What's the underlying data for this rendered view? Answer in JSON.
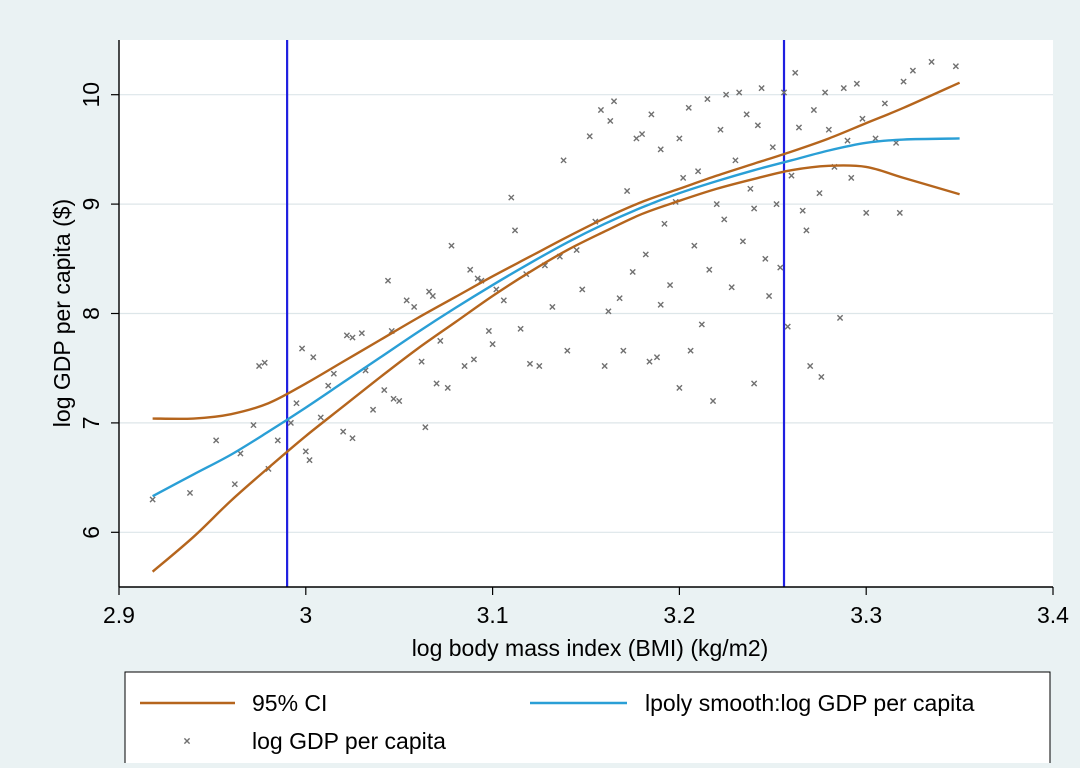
{
  "chart_data": {
    "type": "scatter",
    "xlabel": "log body mass index (BMI) (kg/m2)",
    "ylabel": "log GDP per capita ($)",
    "xlim": [
      2.9,
      3.4
    ],
    "ylim": [
      5.5,
      10.5
    ],
    "x_ticks": [
      "2.9",
      "3",
      "3.1",
      "3.2",
      "3.3",
      "3.4"
    ],
    "y_ticks": [
      "6",
      "7",
      "8",
      "9",
      "10"
    ],
    "grid": true,
    "legend_position": "bottom",
    "reference_lines_x": [
      2.99,
      3.256
    ],
    "colors": {
      "ci": "#b5651d",
      "smooth": "#2a9fd6",
      "scatter": "#707070",
      "reference": "#1f1fe0",
      "grid": "#dde6e9"
    },
    "series": [
      {
        "name": "95% CI",
        "kind": "line",
        "x": [
          2.918,
          2.94,
          2.96,
          2.98,
          3.0,
          3.02,
          3.04,
          3.06,
          3.08,
          3.1,
          3.12,
          3.14,
          3.16,
          3.18,
          3.2,
          3.22,
          3.24,
          3.26,
          3.28,
          3.3,
          3.32,
          3.35
        ],
        "y": [
          7.04,
          7.04,
          7.08,
          7.18,
          7.36,
          7.56,
          7.76,
          7.96,
          8.15,
          8.34,
          8.52,
          8.7,
          8.87,
          9.02,
          9.14,
          9.26,
          9.37,
          9.48,
          9.6,
          9.74,
          9.88,
          10.11
        ]
      },
      {
        "name": "95% CI lower",
        "kind": "line",
        "x": [
          2.918,
          2.94,
          2.96,
          2.98,
          3.0,
          3.02,
          3.04,
          3.06,
          3.08,
          3.1,
          3.12,
          3.14,
          3.16,
          3.18,
          3.2,
          3.22,
          3.24,
          3.26,
          3.28,
          3.3,
          3.32,
          3.35
        ],
        "y": [
          5.64,
          5.96,
          6.29,
          6.59,
          6.88,
          7.15,
          7.42,
          7.68,
          7.92,
          8.16,
          8.38,
          8.58,
          8.75,
          8.91,
          9.03,
          9.14,
          9.23,
          9.31,
          9.35,
          9.34,
          9.24,
          9.09
        ]
      },
      {
        "name": "lpoly smooth:log GDP per capita",
        "kind": "line",
        "x": [
          2.918,
          2.94,
          2.96,
          2.98,
          3.0,
          3.02,
          3.04,
          3.06,
          3.08,
          3.1,
          3.12,
          3.14,
          3.16,
          3.18,
          3.2,
          3.22,
          3.24,
          3.26,
          3.28,
          3.3,
          3.32,
          3.35
        ],
        "y": [
          6.33,
          6.53,
          6.71,
          6.92,
          7.14,
          7.37,
          7.6,
          7.83,
          8.05,
          8.26,
          8.46,
          8.65,
          8.82,
          8.97,
          9.1,
          9.21,
          9.31,
          9.4,
          9.49,
          9.56,
          9.59,
          9.6
        ]
      },
      {
        "name": "log GDP per capita",
        "kind": "scatter",
        "points": [
          [
            2.918,
            6.3
          ],
          [
            2.938,
            6.36
          ],
          [
            2.952,
            6.84
          ],
          [
            2.962,
            6.44
          ],
          [
            2.965,
            6.72
          ],
          [
            2.972,
            6.98
          ],
          [
            2.975,
            7.52
          ],
          [
            2.978,
            7.55
          ],
          [
            2.98,
            6.58
          ],
          [
            2.985,
            6.84
          ],
          [
            2.992,
            7.0
          ],
          [
            2.995,
            7.18
          ],
          [
            2.998,
            7.68
          ],
          [
            3.0,
            6.74
          ],
          [
            3.002,
            6.66
          ],
          [
            3.004,
            7.6
          ],
          [
            3.008,
            7.05
          ],
          [
            3.012,
            7.34
          ],
          [
            3.015,
            7.45
          ],
          [
            3.02,
            6.92
          ],
          [
            3.022,
            7.8
          ],
          [
            3.025,
            6.86
          ],
          [
            3.025,
            7.78
          ],
          [
            3.03,
            7.82
          ],
          [
            3.032,
            7.48
          ],
          [
            3.036,
            7.12
          ],
          [
            3.042,
            7.3
          ],
          [
            3.044,
            8.3
          ],
          [
            3.046,
            7.84
          ],
          [
            3.047,
            7.22
          ],
          [
            3.05,
            7.2
          ],
          [
            3.054,
            8.12
          ],
          [
            3.058,
            8.06
          ],
          [
            3.062,
            7.56
          ],
          [
            3.064,
            6.96
          ],
          [
            3.066,
            8.2
          ],
          [
            3.068,
            8.16
          ],
          [
            3.07,
            7.36
          ],
          [
            3.072,
            7.75
          ],
          [
            3.076,
            7.32
          ],
          [
            3.078,
            8.62
          ],
          [
            3.085,
            7.52
          ],
          [
            3.088,
            8.4
          ],
          [
            3.09,
            7.58
          ],
          [
            3.092,
            8.32
          ],
          [
            3.094,
            8.3
          ],
          [
            3.098,
            7.84
          ],
          [
            3.1,
            7.72
          ],
          [
            3.102,
            8.22
          ],
          [
            3.106,
            8.12
          ],
          [
            3.11,
            9.06
          ],
          [
            3.112,
            8.76
          ],
          [
            3.115,
            7.86
          ],
          [
            3.118,
            8.36
          ],
          [
            3.12,
            7.54
          ],
          [
            3.125,
            7.52
          ],
          [
            3.128,
            8.44
          ],
          [
            3.132,
            8.06
          ],
          [
            3.136,
            8.52
          ],
          [
            3.138,
            9.4
          ],
          [
            3.14,
            7.66
          ],
          [
            3.145,
            8.58
          ],
          [
            3.148,
            8.22
          ],
          [
            3.152,
            9.62
          ],
          [
            3.155,
            8.84
          ],
          [
            3.158,
            9.86
          ],
          [
            3.16,
            7.52
          ],
          [
            3.162,
            8.02
          ],
          [
            3.163,
            9.76
          ],
          [
            3.165,
            9.94
          ],
          [
            3.168,
            8.14
          ],
          [
            3.17,
            7.66
          ],
          [
            3.172,
            9.12
          ],
          [
            3.175,
            8.38
          ],
          [
            3.177,
            9.6
          ],
          [
            3.18,
            9.64
          ],
          [
            3.182,
            8.54
          ],
          [
            3.184,
            7.56
          ],
          [
            3.185,
            9.82
          ],
          [
            3.188,
            7.6
          ],
          [
            3.19,
            8.08
          ],
          [
            3.19,
            9.5
          ],
          [
            3.192,
            8.82
          ],
          [
            3.195,
            8.26
          ],
          [
            3.198,
            9.02
          ],
          [
            3.2,
            7.32
          ],
          [
            3.2,
            9.6
          ],
          [
            3.202,
            9.24
          ],
          [
            3.205,
            9.88
          ],
          [
            3.206,
            7.66
          ],
          [
            3.208,
            8.62
          ],
          [
            3.21,
            9.3
          ],
          [
            3.212,
            7.9
          ],
          [
            3.215,
            9.96
          ],
          [
            3.216,
            8.4
          ],
          [
            3.218,
            7.2
          ],
          [
            3.22,
            9.0
          ],
          [
            3.222,
            9.68
          ],
          [
            3.224,
            8.86
          ],
          [
            3.225,
            10.0
          ],
          [
            3.228,
            8.24
          ],
          [
            3.23,
            9.4
          ],
          [
            3.232,
            10.02
          ],
          [
            3.234,
            8.66
          ],
          [
            3.236,
            9.82
          ],
          [
            3.238,
            9.14
          ],
          [
            3.24,
            8.96
          ],
          [
            3.24,
            7.36
          ],
          [
            3.242,
            9.72
          ],
          [
            3.244,
            10.06
          ],
          [
            3.246,
            8.5
          ],
          [
            3.248,
            8.16
          ],
          [
            3.25,
            9.52
          ],
          [
            3.252,
            9.0
          ],
          [
            3.254,
            8.42
          ],
          [
            3.256,
            10.02
          ],
          [
            3.258,
            7.88
          ],
          [
            3.26,
            9.26
          ],
          [
            3.262,
            10.2
          ],
          [
            3.264,
            9.7
          ],
          [
            3.266,
            8.94
          ],
          [
            3.268,
            8.76
          ],
          [
            3.27,
            7.52
          ],
          [
            3.272,
            9.86
          ],
          [
            3.275,
            9.1
          ],
          [
            3.276,
            7.42
          ],
          [
            3.278,
            10.02
          ],
          [
            3.28,
            9.68
          ],
          [
            3.283,
            9.34
          ],
          [
            3.286,
            7.96
          ],
          [
            3.288,
            10.06
          ],
          [
            3.29,
            9.58
          ],
          [
            3.292,
            9.24
          ],
          [
            3.295,
            10.1
          ],
          [
            3.298,
            9.78
          ],
          [
            3.3,
            8.92
          ],
          [
            3.305,
            9.6
          ],
          [
            3.31,
            9.92
          ],
          [
            3.316,
            9.56
          ],
          [
            3.318,
            8.92
          ],
          [
            3.32,
            10.12
          ],
          [
            3.325,
            10.22
          ],
          [
            3.335,
            10.3
          ],
          [
            3.348,
            10.26
          ]
        ]
      }
    ],
    "legend": {
      "entries": [
        {
          "label": "95% CI",
          "kind": "line",
          "color": "#b5651d"
        },
        {
          "label": "lpoly smooth:log GDP per capita",
          "kind": "line",
          "color": "#2a9fd6"
        },
        {
          "label": "log GDP per capita",
          "kind": "marker",
          "color": "#707070"
        }
      ]
    }
  }
}
